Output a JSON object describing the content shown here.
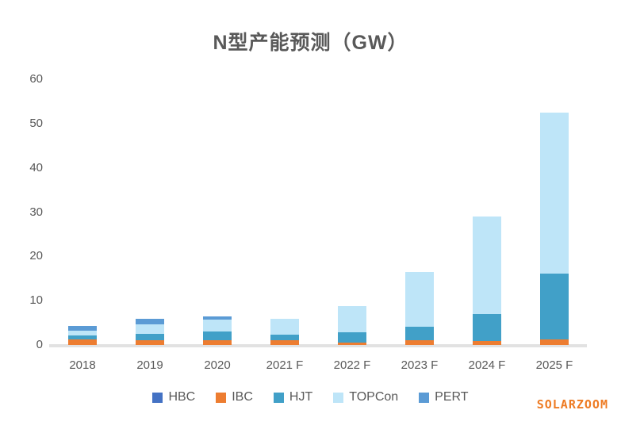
{
  "title": "N型产能预测（GW）",
  "watermark": "SOLARZOOM",
  "colors": {
    "HBC": "#4472c4",
    "IBC": "#ed7d31",
    "HJT": "#41a0c8",
    "TOPCon": "#bee5f8",
    "PERT": "#5b9bd5",
    "axis_text": "#595959",
    "title_text": "#595959",
    "baseline": "#e2e2e2",
    "watermark": "#ee7b23"
  },
  "chart_data": {
    "type": "bar",
    "stacked": true,
    "title": "N型产能预测（GW）",
    "xlabel": "",
    "ylabel": "",
    "categories": [
      "2018",
      "2019",
      "2020",
      "2021 F",
      "2022 F",
      "2023 F",
      "2024 F",
      "2025 F"
    ],
    "series": [
      {
        "name": "HBC",
        "color": "#4472c4",
        "values": [
          0,
          0,
          0,
          0,
          0,
          0,
          0,
          0
        ]
      },
      {
        "name": "IBC",
        "color": "#ed7d31",
        "values": [
          1.3,
          1.1,
          1.1,
          1.0,
          0.6,
          1.0,
          0.9,
          1.3
        ]
      },
      {
        "name": "HJT",
        "color": "#41a0c8",
        "values": [
          0.9,
          1.4,
          2.0,
          1.3,
          2.3,
          3.2,
          6.1,
          14.9
        ]
      },
      {
        "name": "TOPCon",
        "color": "#bee5f8",
        "values": [
          1.0,
          2.1,
          2.6,
          3.7,
          5.8,
          12.3,
          22.0,
          36.3
        ]
      },
      {
        "name": "PERT",
        "color": "#5b9bd5",
        "values": [
          1.1,
          1.4,
          0.7,
          0,
          0,
          0,
          0,
          0
        ]
      }
    ],
    "totals": [
      4.3,
      6.0,
      6.4,
      6.0,
      8.7,
      16.5,
      29.0,
      52.5
    ],
    "ylim": [
      0,
      60
    ],
    "yticks": [
      0,
      10,
      20,
      30,
      40,
      50,
      60
    ],
    "grid": false,
    "legend_position": "bottom"
  }
}
